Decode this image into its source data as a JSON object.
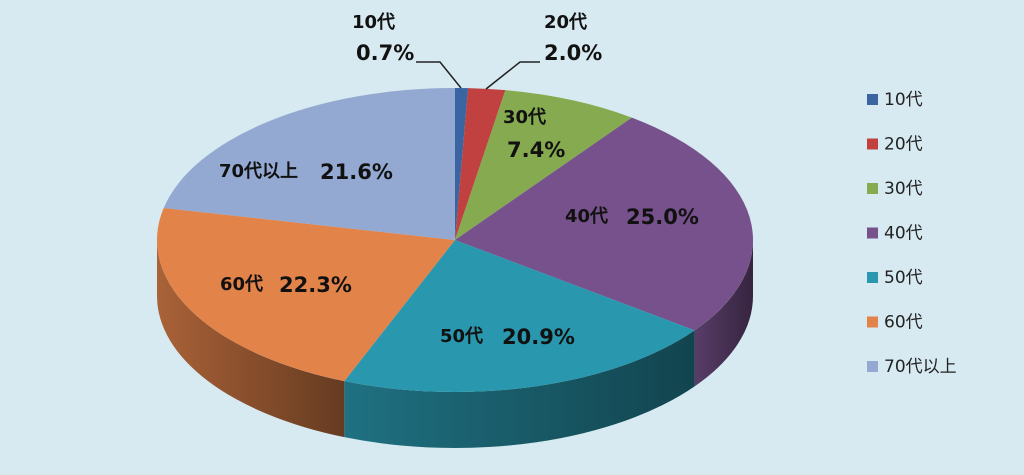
{
  "chart_data": {
    "type": "pie",
    "style": "3d",
    "start": "12 o'clock, clockwise",
    "legend_position": "right",
    "slices": [
      {
        "label": "10代",
        "value": 0.7,
        "value_label": "0.7%",
        "color": "#3b64a3"
      },
      {
        "label": "20代",
        "value": 2.0,
        "value_label": "2.0%",
        "color": "#c0413f"
      },
      {
        "label": "30代",
        "value": 7.4,
        "value_label": "7.4%",
        "color": "#86aa4f"
      },
      {
        "label": "40代",
        "value": 25.0,
        "value_label": "25.0%",
        "color": "#76518b"
      },
      {
        "label": "50代",
        "value": 20.9,
        "value_label": "20.9%",
        "color": "#2997ad"
      },
      {
        "label": "60代",
        "value": 22.3,
        "value_label": "22.3%",
        "color": "#e2834a"
      },
      {
        "label": "70代以上",
        "value": 21.6,
        "value_label": "21.6%",
        "color": "#93a9d1"
      }
    ]
  }
}
